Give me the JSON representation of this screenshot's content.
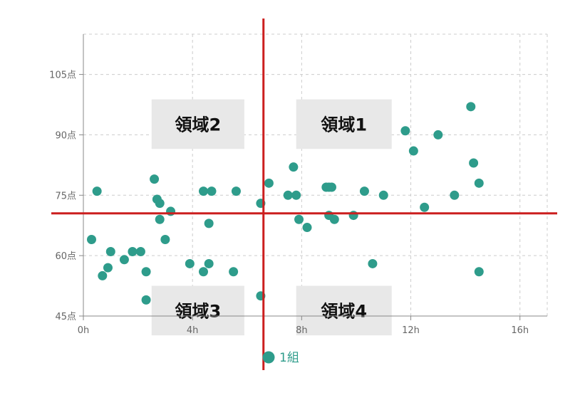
{
  "chart_data": {
    "type": "scatter",
    "xlim": [
      0,
      17
    ],
    "ylim": [
      45,
      115
    ],
    "x_ticks": [
      0,
      4,
      8,
      12,
      16
    ],
    "x_tick_labels": [
      "0h",
      "4h",
      "8h",
      "12h",
      "16h"
    ],
    "y_ticks": [
      45,
      60,
      75,
      90,
      105
    ],
    "y_tick_labels": [
      "45点",
      "60点",
      "75点",
      "90点",
      "105点"
    ],
    "grid": true,
    "legend": "bottom-center",
    "point_color": "#2e9c8b",
    "reference_line_color": "#cc1f1f",
    "region_box_color": "#e8e8e8",
    "reference_lines": {
      "x": 6.6,
      "y": 70.5
    },
    "regions": [
      {
        "label": "領域2",
        "x": [
          2.5,
          5.9
        ],
        "y": [
          86.5,
          98.8
        ]
      },
      {
        "label": "領域1",
        "x": [
          7.8,
          11.3
        ],
        "y": [
          86.5,
          98.8
        ]
      },
      {
        "label": "領域3",
        "x": [
          2.5,
          5.9
        ],
        "y": [
          40.2,
          52.5
        ]
      },
      {
        "label": "領域4",
        "x": [
          7.8,
          11.3
        ],
        "y": [
          40.2,
          52.5
        ]
      }
    ],
    "series": [
      {
        "name": "1組",
        "points": [
          [
            0.3,
            64
          ],
          [
            0.5,
            76
          ],
          [
            0.7,
            55
          ],
          [
            0.9,
            57
          ],
          [
            1.0,
            61
          ],
          [
            1.5,
            59
          ],
          [
            1.8,
            61
          ],
          [
            2.1,
            61
          ],
          [
            2.3,
            56
          ],
          [
            2.3,
            49
          ],
          [
            2.6,
            79
          ],
          [
            2.7,
            74
          ],
          [
            2.8,
            73
          ],
          [
            2.8,
            69
          ],
          [
            3.0,
            64
          ],
          [
            3.2,
            71
          ],
          [
            3.9,
            58
          ],
          [
            4.4,
            76
          ],
          [
            4.4,
            56
          ],
          [
            4.6,
            68
          ],
          [
            4.6,
            58
          ],
          [
            4.7,
            76
          ],
          [
            5.5,
            56
          ],
          [
            5.6,
            76
          ],
          [
            6.5,
            73
          ],
          [
            6.5,
            50
          ],
          [
            6.8,
            78
          ],
          [
            7.5,
            75
          ],
          [
            7.7,
            82
          ],
          [
            7.8,
            75
          ],
          [
            7.9,
            69
          ],
          [
            8.2,
            67
          ],
          [
            8.9,
            77
          ],
          [
            9.0,
            70
          ],
          [
            9.0,
            77
          ],
          [
            9.1,
            77
          ],
          [
            9.2,
            69
          ],
          [
            9.9,
            70
          ],
          [
            10.3,
            76
          ],
          [
            10.6,
            58
          ],
          [
            11.0,
            75
          ],
          [
            11.8,
            91
          ],
          [
            12.1,
            86
          ],
          [
            12.5,
            72
          ],
          [
            13.0,
            90
          ],
          [
            13.6,
            75
          ],
          [
            14.2,
            97
          ],
          [
            14.3,
            83
          ],
          [
            14.5,
            78
          ],
          [
            14.5,
            56
          ]
        ]
      }
    ]
  }
}
